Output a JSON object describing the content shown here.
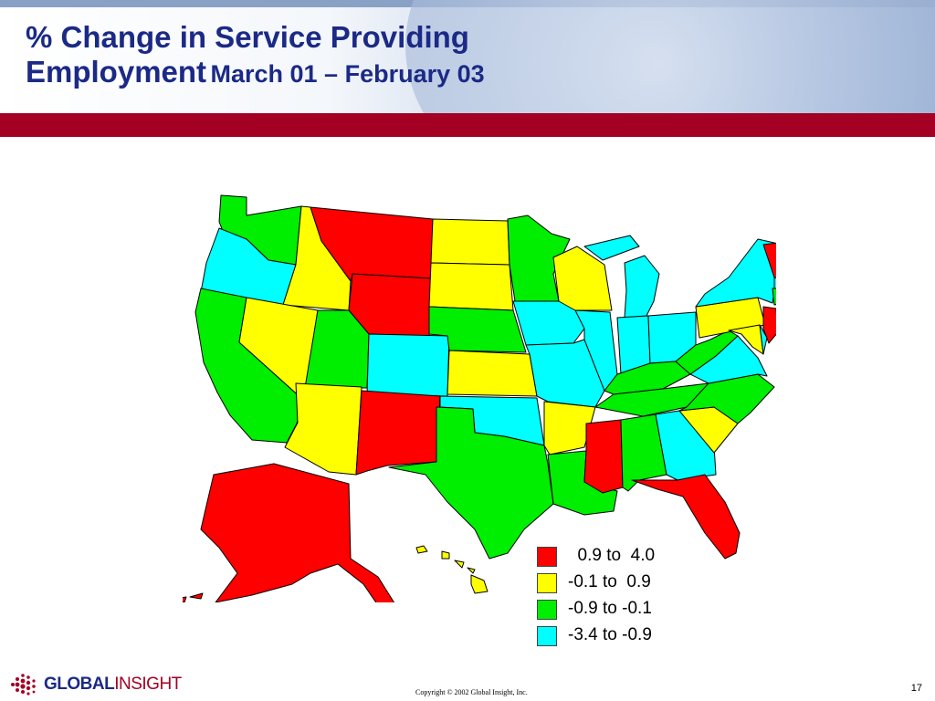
{
  "title": {
    "line1": "% Change in Service Providing",
    "line2": "Employment",
    "subtitle": "March 01 – February 03"
  },
  "colors": {
    "title": "#1b2a86",
    "band": "#a30023",
    "red": "#ff0000",
    "yellow": "#ffff00",
    "green": "#00ee00",
    "cyan": "#00ffff"
  },
  "legend": [
    {
      "color": "#ff0000",
      "label": "  0.9 to  4.0"
    },
    {
      "color": "#ffff00",
      "label": "-0.1 to  0.9"
    },
    {
      "color": "#00ee00",
      "label": "-0.9 to -0.1"
    },
    {
      "color": "#00ffff",
      "label": "-3.4 to -0.9"
    }
  ],
  "map_states": [
    {
      "state": "WA",
      "category": "-0.9 to -0.1"
    },
    {
      "state": "OR",
      "category": "-3.4 to -0.9"
    },
    {
      "state": "CA",
      "category": "-0.9 to -0.1"
    },
    {
      "state": "ID",
      "category": "-0.1 to 0.9"
    },
    {
      "state": "NV",
      "category": "-0.1 to 0.9"
    },
    {
      "state": "MT",
      "category": "0.9 to 4.0"
    },
    {
      "state": "WY",
      "category": "0.9 to 4.0"
    },
    {
      "state": "UT",
      "category": "-0.9 to -0.1"
    },
    {
      "state": "AZ",
      "category": "-0.1 to 0.9"
    },
    {
      "state": "CO",
      "category": "-3.4 to -0.9"
    },
    {
      "state": "NM",
      "category": "0.9 to 4.0"
    },
    {
      "state": "ND",
      "category": "-0.1 to 0.9"
    },
    {
      "state": "SD",
      "category": "-0.1 to 0.9"
    },
    {
      "state": "NE",
      "category": "-0.9 to -0.1"
    },
    {
      "state": "KS",
      "category": "-0.1 to 0.9"
    },
    {
      "state": "OK",
      "category": "-3.4 to -0.9"
    },
    {
      "state": "TX",
      "category": "-0.9 to -0.1"
    },
    {
      "state": "MN",
      "category": "-0.9 to -0.1"
    },
    {
      "state": "IA",
      "category": "-3.4 to -0.9"
    },
    {
      "state": "MO",
      "category": "-3.4 to -0.9"
    },
    {
      "state": "AR",
      "category": "-0.1 to 0.9"
    },
    {
      "state": "LA",
      "category": "-0.9 to -0.1"
    },
    {
      "state": "WI",
      "category": "-0.1 to 0.9"
    },
    {
      "state": "IL",
      "category": "-3.4 to -0.9"
    },
    {
      "state": "MI",
      "category": "-3.4 to -0.9"
    },
    {
      "state": "IN",
      "category": "-3.4 to -0.9"
    },
    {
      "state": "OH",
      "category": "-3.4 to -0.9"
    },
    {
      "state": "KY",
      "category": "-0.9 to -0.1"
    },
    {
      "state": "TN",
      "category": "-0.9 to -0.1"
    },
    {
      "state": "MS",
      "category": "0.9 to 4.0"
    },
    {
      "state": "AL",
      "category": "-0.9 to -0.1"
    },
    {
      "state": "GA",
      "category": "-3.4 to -0.9"
    },
    {
      "state": "FL",
      "category": "0.9 to 4.0"
    },
    {
      "state": "SC",
      "category": "-0.1 to 0.9"
    },
    {
      "state": "NC",
      "category": "-0.9 to -0.1"
    },
    {
      "state": "VA",
      "category": "-3.4 to -0.9"
    },
    {
      "state": "WV",
      "category": "-0.9 to -0.1"
    },
    {
      "state": "PA",
      "category": "-0.1 to 0.9"
    },
    {
      "state": "NY",
      "category": "-3.4 to -0.9"
    },
    {
      "state": "NJ",
      "category": "0.9 to 4.0"
    },
    {
      "state": "DE",
      "category": "-3.4 to -0.9"
    },
    {
      "state": "MD",
      "category": "-0.1 to 0.9"
    },
    {
      "state": "CT",
      "category": "-0.9 to -0.1"
    },
    {
      "state": "RI",
      "category": "0.9 to 4.0"
    },
    {
      "state": "MA",
      "category": "-3.4 to -0.9"
    },
    {
      "state": "VT",
      "category": "0.9 to 4.0"
    },
    {
      "state": "NH",
      "category": "0.9 to 4.0"
    },
    {
      "state": "ME",
      "category": "0.9 to 4.0"
    },
    {
      "state": "AK",
      "category": "0.9 to 4.0"
    },
    {
      "state": "HI",
      "category": "-0.1 to 0.9"
    }
  ],
  "footer": {
    "logo_main": "GLOBAL",
    "logo_accent": "INSIGHT",
    "copyright": "Copyright © 2002 Global Insight, Inc.",
    "page_number": "17"
  }
}
